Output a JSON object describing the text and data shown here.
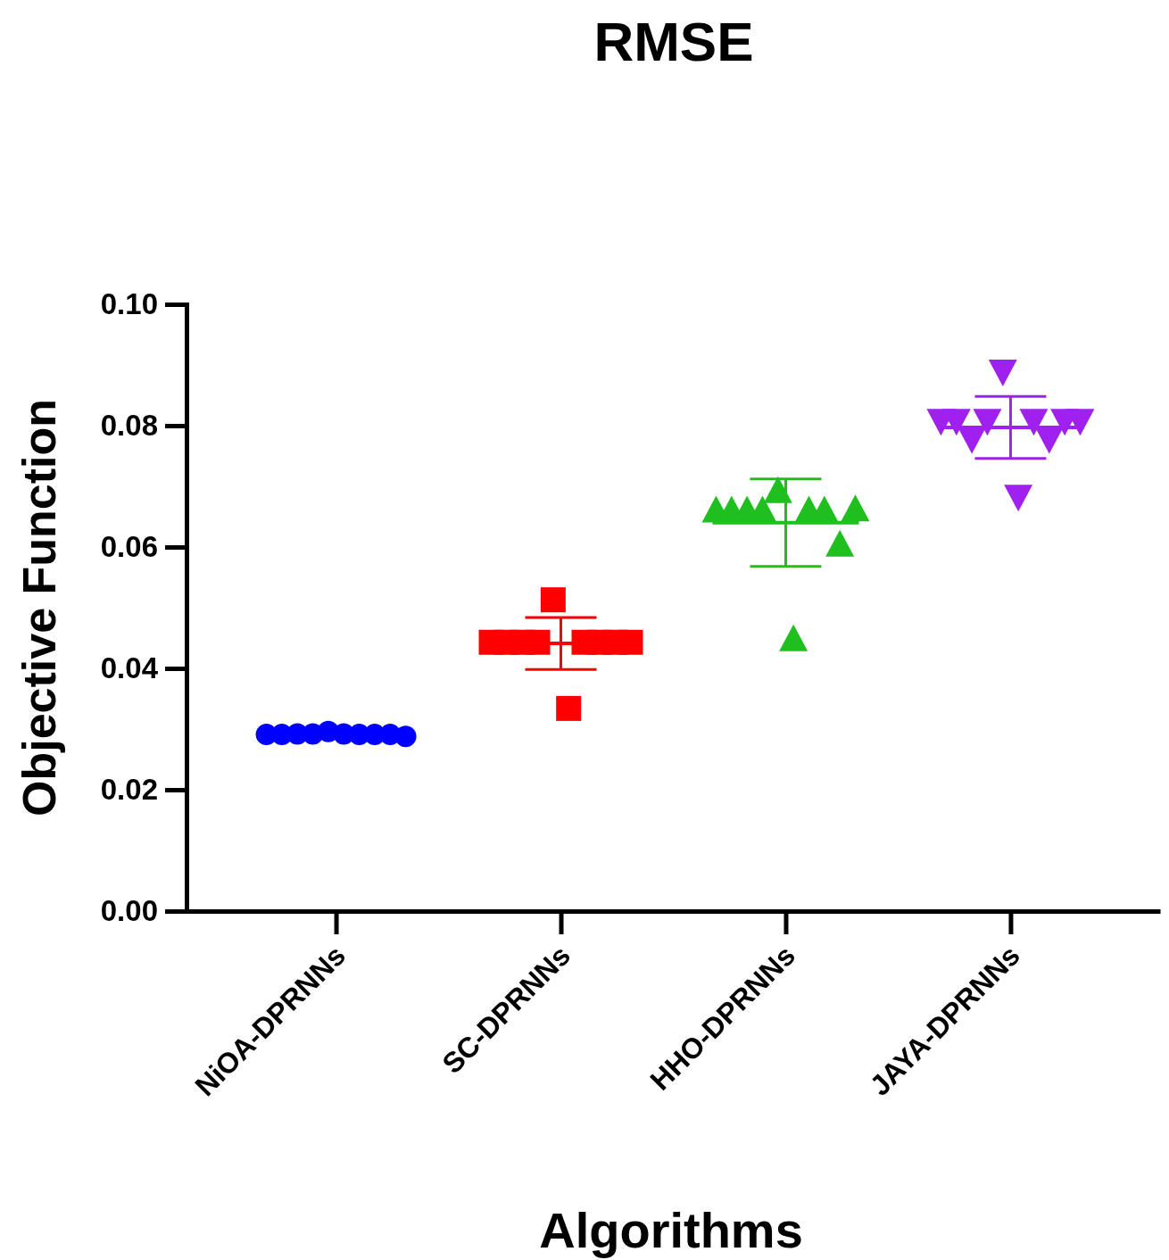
{
  "chart_data": {
    "type": "scatter",
    "title": "RMSE",
    "xlabel": "Algorithms",
    "ylabel": "Objective Function",
    "categories": [
      "NiOA-DPRNNs",
      "SC-DPRNNs",
      "HHO-DPRNNs",
      "JAYA-DPRNNs"
    ],
    "ylim": [
      0,
      0.1
    ],
    "yticks": [
      {
        "value": 0,
        "label": "0.00"
      },
      {
        "value": 0.02,
        "label": "0.02"
      },
      {
        "value": 0.04,
        "label": "0.04"
      },
      {
        "value": 0.06,
        "label": "0.06"
      },
      {
        "value": 0.08,
        "label": "0.08"
      },
      {
        "value": 0.1,
        "label": "0.10"
      }
    ],
    "grid": false,
    "series": [
      {
        "marker": "circle",
        "color": "#0000ff",
        "x": [
          "NiOA-DPRNNs",
          "NiOA-DPRNNs",
          "NiOA-DPRNNs",
          "NiOA-DPRNNs",
          "NiOA-DPRNNs",
          "NiOA-DPRNNs",
          "NiOA-DPRNNs",
          "NiOA-DPRNNs",
          "NiOA-DPRNNs",
          "NiOA-DPRNNs"
        ],
        "values": [
          0.0291,
          0.0291,
          0.0292,
          0.0292,
          0.0296,
          0.0292,
          0.0291,
          0.0291,
          0.0291,
          0.0288
        ]
      },
      {
        "marker": "square",
        "color": "#ff0000",
        "x": [
          "SC-DPRNNs",
          "SC-DPRNNs",
          "SC-DPRNNs",
          "SC-DPRNNs",
          "SC-DPRNNs",
          "SC-DPRNNs",
          "SC-DPRNNs",
          "SC-DPRNNs",
          "SC-DPRNNs",
          "SC-DPRNNs"
        ],
        "values": [
          0.0443,
          0.0443,
          0.0443,
          0.0443,
          0.0513,
          0.0334,
          0.0443,
          0.0443,
          0.0443,
          0.0443
        ]
      },
      {
        "marker": "triangle",
        "color": "#1fbf1f",
        "x": [
          "HHO-DPRNNs",
          "HHO-DPRNNs",
          "HHO-DPRNNs",
          "HHO-DPRNNs",
          "HHO-DPRNNs",
          "HHO-DPRNNs",
          "HHO-DPRNNs",
          "HHO-DPRNNs",
          "HHO-DPRNNs",
          "HHO-DPRNNs"
        ],
        "values": [
          0.0658,
          0.0658,
          0.0658,
          0.0658,
          0.069,
          0.0446,
          0.0658,
          0.0658,
          0.0602,
          0.066
        ]
      },
      {
        "marker": "triangle-down",
        "color": "#a020f0",
        "x": [
          "JAYA-DPRNNs",
          "JAYA-DPRNNs",
          "JAYA-DPRNNs",
          "JAYA-DPRNNs",
          "JAYA-DPRNNs",
          "JAYA-DPRNNs",
          "JAYA-DPRNNs",
          "JAYA-DPRNNs",
          "JAYA-DPRNNs",
          "JAYA-DPRNNs"
        ],
        "values": [
          0.081,
          0.081,
          0.078,
          0.081,
          0.0891,
          0.0685,
          0.081,
          0.078,
          0.081,
          0.081
        ]
      },
      {
        "type": "box",
        "colors": [
          "#0000ff",
          "#ff0000",
          "#1fbf1f",
          "#a020f0"
        ],
        "boxes": [
          {
            "low": 0.0292,
            "q1": 0.0292,
            "median": 0.0292,
            "q3": 0.0292,
            "high": 0.0292
          },
          {
            "low": 0.0398,
            "q1": 0.0441,
            "median": 0.0441,
            "q3": 0.0441,
            "high": 0.0484
          },
          {
            "low": 0.0568,
            "q1": 0.064,
            "median": 0.064,
            "q3": 0.064,
            "high": 0.0712
          },
          {
            "low": 0.0746,
            "q1": 0.0797,
            "median": 0.0797,
            "q3": 0.0797,
            "high": 0.0848
          }
        ]
      }
    ]
  }
}
